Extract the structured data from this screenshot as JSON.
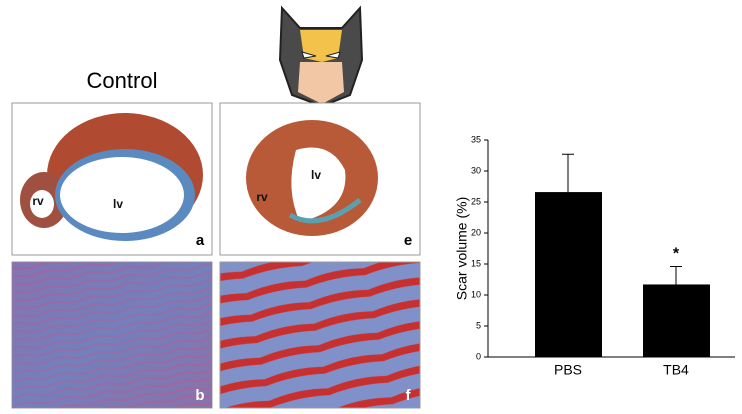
{
  "figure": {
    "control_label": "Control",
    "panels": [
      {
        "letter": "a",
        "labels": [
          "rv",
          "lv"
        ]
      },
      {
        "letter": "b",
        "labels": []
      },
      {
        "letter": "e",
        "labels": [
          "rv",
          "lv"
        ]
      },
      {
        "letter": "f",
        "labels": []
      }
    ]
  },
  "chart_data": {
    "type": "bar",
    "y_label": "Scar volume (%)",
    "categories": [
      "PBS",
      "TB4"
    ],
    "values": [
      26.6,
      11.7
    ],
    "errors": [
      6.1,
      2.9
    ],
    "color": "#000000",
    "annotations": [
      {
        "category": 1,
        "text": "*"
      }
    ],
    "ylim": [
      0,
      35
    ],
    "yticks": [
      0,
      5,
      10,
      15,
      20,
      25,
      30,
      35
    ],
    "grid": false
  }
}
